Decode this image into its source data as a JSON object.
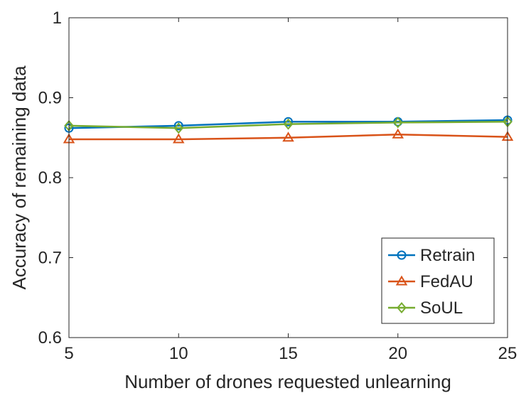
{
  "chart_data": {
    "type": "line",
    "title": "",
    "xlabel": "Number of drones requested unlearning",
    "ylabel": "Accuracy of remaining data",
    "x": [
      5,
      10,
      15,
      20,
      25
    ],
    "xlim": [
      5,
      25
    ],
    "ylim": [
      0.6,
      1.0
    ],
    "xticks": [
      "5",
      "10",
      "15",
      "20",
      "25"
    ],
    "yticks": [
      "0.6",
      "0.7",
      "0.8",
      "0.9",
      "1"
    ],
    "grid": false,
    "legend_position": "bottom-right",
    "series": [
      {
        "name": "Retrain",
        "values": [
          0.862,
          0.865,
          0.87,
          0.87,
          0.872
        ],
        "color": "#0072BD",
        "marker": "circle"
      },
      {
        "name": "FedAU",
        "values": [
          0.848,
          0.848,
          0.85,
          0.854,
          0.851
        ],
        "color": "#D95319",
        "marker": "triangle"
      },
      {
        "name": "SoUL",
        "values": [
          0.865,
          0.862,
          0.867,
          0.869,
          0.87
        ],
        "color": "#77AC30",
        "marker": "diamond"
      }
    ]
  }
}
